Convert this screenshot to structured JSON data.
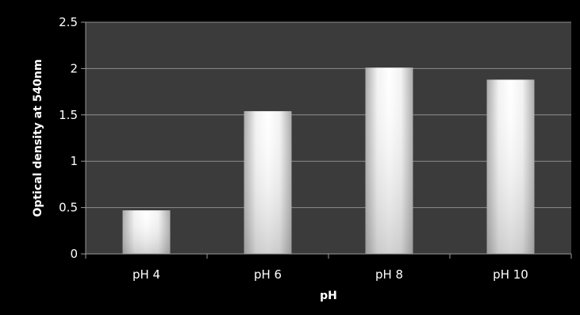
{
  "chart_data": {
    "type": "bar",
    "categories": [
      "pH 4",
      "pH 6",
      "pH 8",
      "pH 10"
    ],
    "values": [
      0.47,
      1.54,
      2.01,
      1.88
    ],
    "xlabel": "pH",
    "ylabel": "Optical density at 540nm",
    "ylim": [
      0,
      2.5
    ],
    "yticks": [
      "0",
      "0.5",
      "1",
      "1.5",
      "2",
      "2.5"
    ],
    "grid": true,
    "legend": "none",
    "colors": {
      "page_background": "#000000",
      "plot_background": "#3b3b3b",
      "gridline": "#8c8c8c",
      "axis": "#9a9a9a",
      "bar_light": "#ffffff",
      "bar_dark": "#b8b8b8",
      "text": "#ffffff"
    }
  }
}
